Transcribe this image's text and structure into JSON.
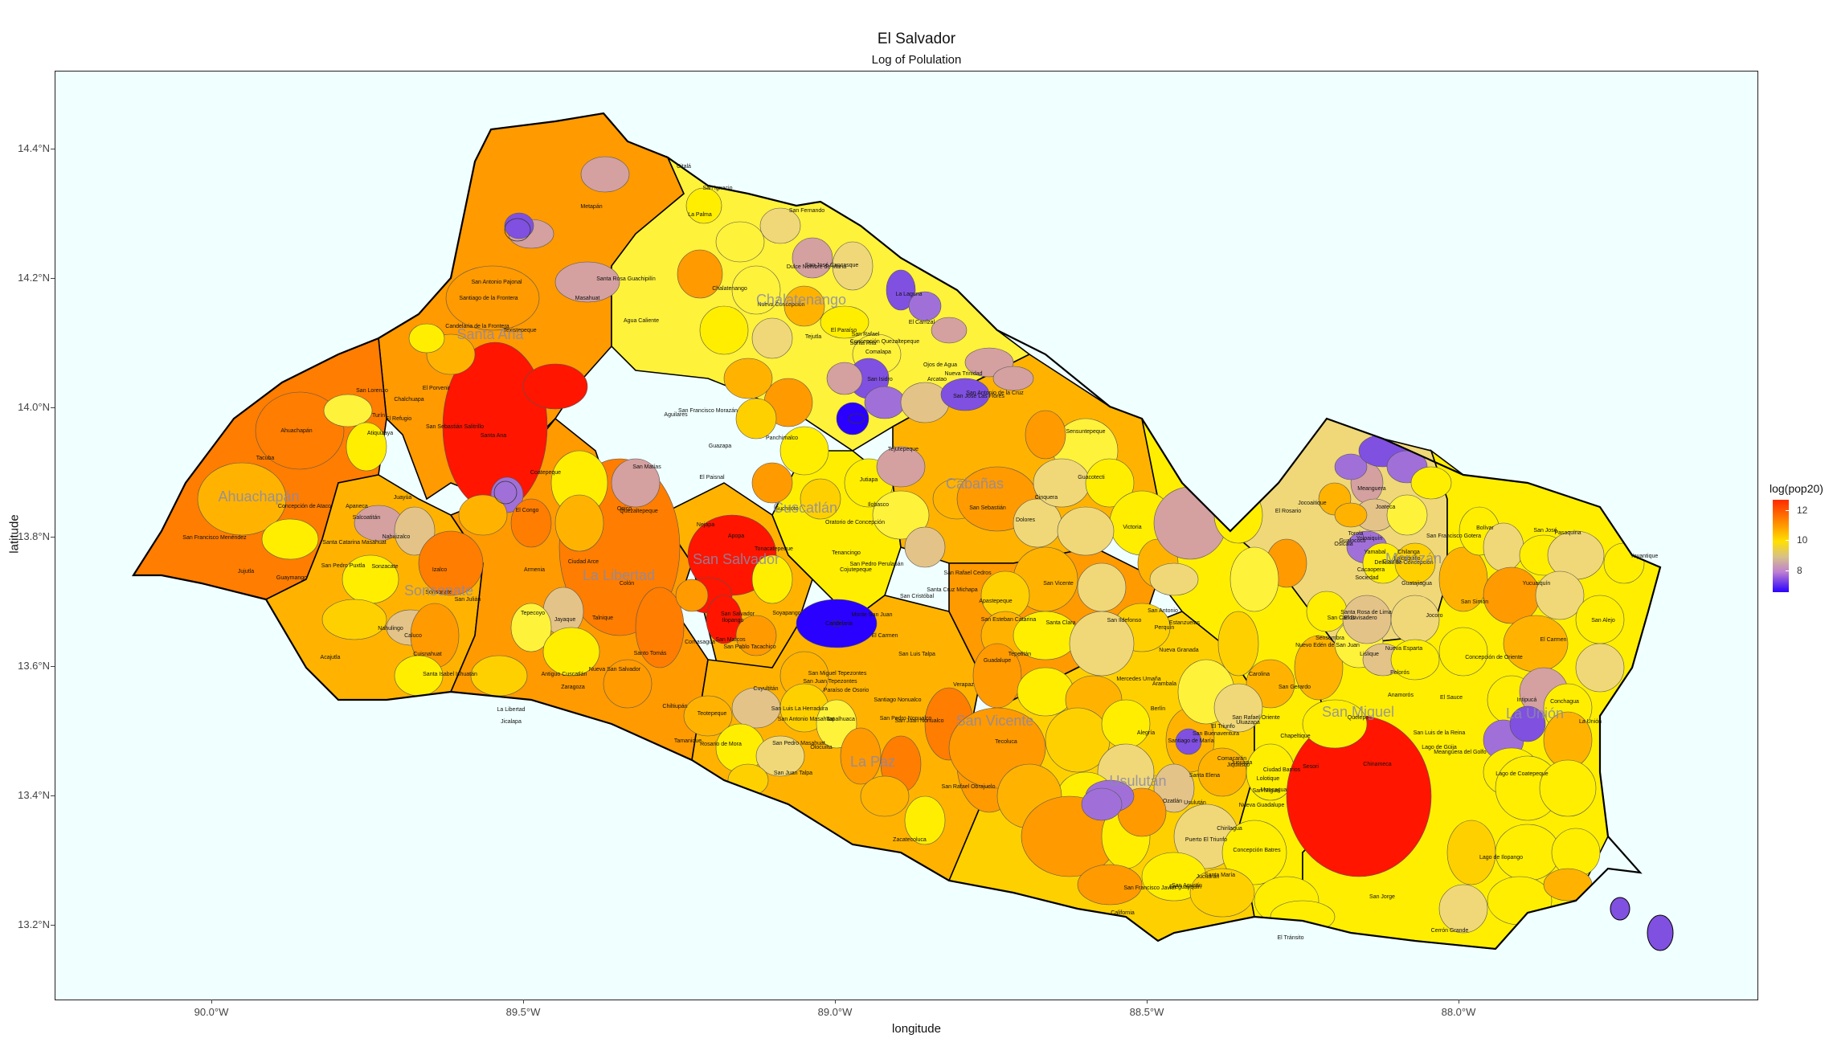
{
  "title": "El Salvador",
  "subtitle": "Log of Polulation",
  "x_axis": {
    "label": "longitude",
    "ticks": [
      "90.0°W",
      "89.5°W",
      "89.0°W",
      "88.5°W",
      "88.0°W"
    ]
  },
  "y_axis": {
    "label": "latitude",
    "ticks": [
      "14.4°N",
      "14.2°N",
      "14.0°N",
      "13.8°N",
      "13.6°N",
      "13.4°N",
      "13.2°N"
    ]
  },
  "legend": {
    "title": "log(pop20)",
    "labels": [
      "12",
      "10",
      "8"
    ],
    "colors": {
      "high": "#ff2a00",
      "mid": "#ffe000",
      "low": "#2a00ff"
    }
  },
  "colors": {
    "background": "#f0ffff",
    "border": "#000000"
  },
  "departments": [
    "Santa Ana",
    "Ahuachapán",
    "Sonsonate",
    "La Libertad",
    "San Salvador",
    "Chalatenango",
    "Cuscatlán",
    "Cabañas",
    "La Paz",
    "San Vicente",
    "Usulután",
    "San Miguel",
    "Morazán",
    "La Unión"
  ],
  "municipalities": [
    "Citalá",
    "Metapán",
    "San Ignacio",
    "La Palma",
    "San Fernando",
    "Masahuat",
    "Santa Rosa Guachipilín",
    "San Antonio Pajonal",
    "Santiago de la Frontera",
    "Candelaria de la Frontera",
    "Texistepeque",
    "El Porvenir",
    "Chalchuapa",
    "San Sebastián Salitrillo",
    "Santa Ana",
    "Coatepeque",
    "El Congo",
    "San Lorenzo",
    "Atiquizaya",
    "El Refugio",
    "Turín",
    "Ahuachapán",
    "Tacuba",
    "Concepción de Ataco",
    "Apaneca",
    "Salcoatitán",
    "Juayúa",
    "San Francisco Menéndez",
    "Jujutla",
    "Guaymango",
    "Nahuizalco",
    "Santa Catarina Masahuat",
    "San Pedro Puxtla",
    "Sonzacate",
    "Izalco",
    "Sonsonate",
    "Nahulingo",
    "Caluco",
    "San Julián",
    "Acajutla",
    "Cuisnahuat",
    "Santa Isabel Ishuatán",
    "Armenia",
    "Tepecoyo",
    "Jayaque",
    "Talnique",
    "Ciudad Arce",
    "Colón",
    "Opico",
    "San Matías",
    "Quezaltepeque",
    "Nejapa",
    "Apopa",
    "Tonacatepeque",
    "San Salvador",
    "Soyapango",
    "Ilopango",
    "San Marcos",
    "Santo Tomás",
    "Nueva San Salvador",
    "Comasagua",
    "Antiguo Cuscatlán",
    "Zaragoza",
    "Chiltiupán",
    "Tamanique",
    "La Libertad",
    "Jicalapa",
    "Teotepeque",
    "Rosario de Mora",
    "Panchimalco",
    "Suchitoto",
    "Oratorio de Concepción",
    "Tenancingo",
    "San Pedro Perulapán",
    "Cojutepeque",
    "Monte San Juan",
    "Candelaria",
    "El Carmen",
    "San Cristóbal",
    "Santa Cruz Michapa",
    "San Rafael Cedros",
    "San Sebastián",
    "Ilobasco",
    "Tejutepeque",
    "Jutiapa",
    "Cinquera",
    "Guacotecti",
    "Sensuntepeque",
    "Victoria",
    "Dolores",
    "San Isidro",
    "Chalatenango",
    "Agua Caliente",
    "Nueva Concepción",
    "Tejutla",
    "El Paraíso",
    "San Rafael",
    "Santa Rita",
    "Concepción Quezaltepeque",
    "Comalapa",
    "La Laguna",
    "El Carrizal",
    "Ojos de Agua",
    "Nueva Trinidad",
    "Arcatao",
    "San José Las Flores",
    "San Antonio de la Cruz",
    "San José Cancasque",
    "Dulce Nombre de María",
    "San Francisco Morazán",
    "El Paisnal",
    "Guazapa",
    "Aguilares",
    "San Pablo Tacachico",
    "Cuyultitán",
    "Olocuilta",
    "San Pedro Masahuat",
    "San Juan Talpa",
    "San Luis Talpa",
    "Santiago Nonualco",
    "San Pedro Nonualco",
    "San Juan Nonualco",
    "San Rafael Obrajuelo",
    "Zacatecoluca",
    "San Luis La Herradura",
    "San Antonio Masahuat",
    "Tapalhuaca",
    "San Miguel Tepezontes",
    "San Juan Tepezontes",
    "Paraíso de Osorio",
    "Verapaz",
    "Guadalupe",
    "Tepetitán",
    "Tecoluca",
    "San Vicente",
    "Apastepeque",
    "San Esteban Catarina",
    "Santa Clara",
    "San Ildefonso",
    "Estanzuelas",
    "Nueva Granada",
    "Mercedes Umaña",
    "Berlín",
    "Alegría",
    "Santiago de María",
    "El Triunfo",
    "San Buenaventura",
    "Jucuapa",
    "Ozatlán",
    "Usulután",
    "Santa Elena",
    "Jiquilisco",
    "Puerto El Triunfo",
    "Concepción Batres",
    "Santa María",
    "San Agustín",
    "San Francisco Javier",
    "California",
    "Ereguayquín",
    "Jucuarán",
    "Chirilagua",
    "El Tránsito",
    "San Jorge",
    "San Rafael Oriente",
    "San Miguel",
    "Chinameca",
    "Nueva Guadalupe",
    "Lolotique",
    "Moncagua",
    "Quelepa",
    "Chapeltique",
    "Uluazapa",
    "Comacarán",
    "Ciudad Barrios",
    "Sesori",
    "San Luis de la Reina",
    "San Gerardo",
    "Nuevo Edén de San Juan",
    "Carolina",
    "San Antonio",
    "Perquín",
    "Arambala",
    "Torola",
    "Jocoaitique",
    "Meanguera",
    "El Rosario",
    "Joateca",
    "Gualococti",
    "Osicala",
    "Delicias de Concepción",
    "Yoloaiquín",
    "Chilanga",
    "Lolotiquillo",
    "Cacaopera",
    "Corinto",
    "Sociedad",
    "Guatajiagua",
    "Yamabal",
    "San Francisco Gotera",
    "San Simón",
    "San Carlos",
    "El Divisadero",
    "Jocoro",
    "Sensembra",
    "Lislique",
    "Nueva Esparta",
    "Polorós",
    "Concepción de Oriente",
    "Anamorós",
    "El Sauce",
    "Santa Rosa de Lima",
    "Bolívar",
    "San José",
    "Pasaquina",
    "Yayantique",
    "Yucuaiquín",
    "San Alejo",
    "El Carmen",
    "Intipucá",
    "Conchagua",
    "La Unión",
    "Meanguera del Golfo",
    "Lago de Güija",
    "Lago de Coatepeque",
    "Lago de Ilopango",
    "Cerrón Grande"
  ]
}
